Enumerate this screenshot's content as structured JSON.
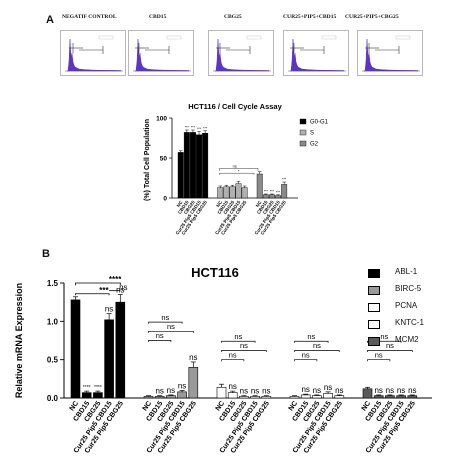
{
  "panelA": {
    "letter": "A",
    "histograms": [
      {
        "label": "NEGATIF CONTROL"
      },
      {
        "label": "CBD15"
      },
      {
        "label": "CBG25"
      },
      {
        "label": "CUR25+PIP5+CBD15"
      },
      {
        "label": "CUR25+PIP5+CBG25"
      }
    ],
    "hist_color": "#5b34c8"
  },
  "panelB": {
    "letter": "B"
  },
  "chart_data": [
    {
      "type": "bar",
      "title": "HCT116 / Cell Cycle Assay",
      "ylabel": "(%) Total Cell Population",
      "ylim": [
        0,
        100
      ],
      "yticks": [
        "0",
        "50",
        "100"
      ],
      "categories": [
        "NC",
        "CBD15",
        "CBG25",
        "Cur25 Pip5 CBD15",
        "Cur25 Pip5 CBG25"
      ],
      "series": [
        {
          "name": "G0-G1",
          "color": "#000000",
          "values": [
            57,
            82,
            82,
            79,
            81
          ],
          "errors": [
            2,
            3,
            3,
            4,
            3
          ],
          "annotations": [
            "",
            "***",
            "***",
            "***",
            "***"
          ]
        },
        {
          "name": "S",
          "color": "#b0b0b0",
          "values": [
            13,
            14,
            14,
            18,
            13
          ],
          "errors": [
            2,
            2,
            2,
            3,
            2
          ],
          "annotations": [
            "",
            "",
            "",
            "",
            ""
          ]
        },
        {
          "name": "G2",
          "color": "#8a8a8a",
          "values": [
            30,
            4,
            4,
            3,
            17
          ],
          "errors": [
            3,
            1,
            1,
            1,
            3
          ],
          "annotations": [
            "",
            "***",
            "***",
            "***",
            "***"
          ]
        }
      ],
      "brackets": [
        {
          "text": "ns"
        },
        {
          "text": "*"
        }
      ],
      "legend_position": "right"
    },
    {
      "type": "bar",
      "title": "HCT116",
      "ylabel": "Relative  mRNA  Expression",
      "ylim": [
        0,
        1.5
      ],
      "yticks": [
        "0.0",
        "0.5",
        "1.0",
        "1.5"
      ],
      "categories": [
        "NC",
        "CBD15",
        "CBG25",
        "Cur25 Pip5 CBD15",
        "Cur25 Pip5 CBG25"
      ],
      "series": [
        {
          "name": "ABL-1",
          "color": "#000000",
          "values": [
            1.28,
            0.07,
            0.07,
            1.02,
            1.25
          ],
          "errors": [
            0.04,
            0.02,
            0.02,
            0.08,
            0.1
          ],
          "annotations": [
            "",
            "****",
            "****",
            "ns",
            "ns"
          ]
        },
        {
          "name": "BIRC-5",
          "color": "#9a9a9a",
          "values": [
            0.02,
            0.02,
            0.03,
            0.08,
            0.4
          ],
          "errors": [
            0.01,
            0.01,
            0.01,
            0.02,
            0.07
          ],
          "annotations": [
            "",
            "ns",
            "ns",
            "ns",
            "ns"
          ]
        },
        {
          "name": "PCNA",
          "color": "#ffffff",
          "values": [
            0.14,
            0.07,
            0.02,
            0.02,
            0.02
          ],
          "errors": [
            0.04,
            0.02,
            0.01,
            0.01,
            0.01
          ],
          "annotations": [
            "",
            "ns",
            "ns",
            "ns",
            "ns"
          ]
        },
        {
          "name": "KNTC-1",
          "color": "#ffffff",
          "values": [
            0.02,
            0.04,
            0.03,
            0.06,
            0.03
          ],
          "errors": [
            0.01,
            0.01,
            0.01,
            0.02,
            0.01
          ],
          "annotations": [
            "",
            "ns",
            "ns",
            "ns",
            "ns"
          ]
        },
        {
          "name": "MCM2",
          "color": "#5a5a5a",
          "values": [
            0.12,
            0.03,
            0.03,
            0.03,
            0.03
          ],
          "errors": [
            0.02,
            0.01,
            0.01,
            0.01,
            0.01
          ],
          "annotations": [
            "",
            "ns",
            "ns",
            "ns",
            "ns"
          ]
        }
      ],
      "brackets": [
        {
          "text": "****"
        },
        {
          "text": "***"
        },
        {
          "text": "ns"
        }
      ],
      "legend_position": "right"
    }
  ]
}
